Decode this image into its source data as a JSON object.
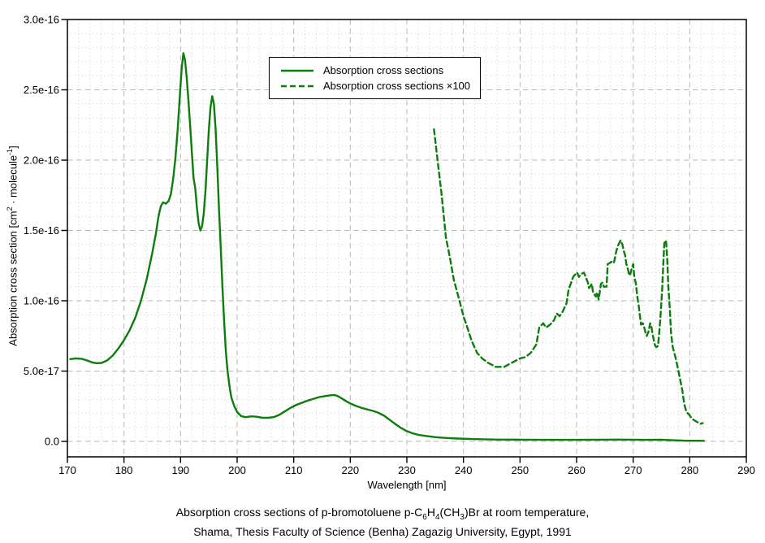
{
  "colors": {
    "curve": "#0d7d0d",
    "grid_major": "#b9b9b9",
    "grid_minor": "#cdcdcd",
    "axis": "#000000",
    "background": "#ffffff"
  },
  "legend": {
    "items": [
      {
        "label": "Absorption cross sections"
      },
      {
        "label": "Absorption cross sections ×100"
      }
    ]
  },
  "caption": {
    "line1_parts": {
      "p1": "Absorption cross sections of p-bromotoluene p-C",
      "sub1": "6",
      "p2": "H",
      "sub2": "4",
      "p3": "(CH",
      "sub3": "3",
      "p4": ")Br at room temperature,"
    },
    "line2": "Shama, Thesis Faculty of Science (Benha) Zagazig University, Egypt, 1991"
  },
  "chart_data": {
    "type": "line",
    "title": "",
    "xlabel": "Wavelength [nm]",
    "ylabel": "Absorption cross section [cm2 · molecule-1]",
    "ylabel_parts": {
      "p1": "Absorption cross section [cm",
      "sup1": "2",
      "p2": " · molecule",
      "sup2": "-1",
      "p3": "]"
    },
    "xlim": [
      170,
      290
    ],
    "ylim_units_1e16": [
      0,
      3.0
    ],
    "x_ticks": [
      170,
      180,
      190,
      200,
      210,
      220,
      230,
      240,
      250,
      260,
      270,
      280,
      290
    ],
    "x_minor_step_nm": 2,
    "y_ticks": [
      [
        0,
        "0.0"
      ],
      [
        0.5,
        "5.0e-17"
      ],
      [
        1.0,
        "1.0e-16"
      ],
      [
        1.5,
        "1.5e-16"
      ],
      [
        2.0,
        "2.0e-16"
      ],
      [
        2.5,
        "2.5e-16"
      ],
      [
        3.0,
        "3.0e-16"
      ]
    ],
    "y_minor_step_1e16": 0.1,
    "grid": {
      "major": "dashed",
      "minor": "dotted"
    },
    "legend_position": "top-center-inside",
    "y_value_unit": "cm^2 molecule^-1, plotted in units of 1e-16",
    "series": [
      {
        "name": "Absorption cross sections",
        "line_style": "solid",
        "color": "#0d7d0d",
        "points_1e16": [
          [
            170.5,
            0.585
          ],
          [
            171.5,
            0.59
          ],
          [
            172.5,
            0.587
          ],
          [
            173.5,
            0.575
          ],
          [
            174.5,
            0.56
          ],
          [
            175.2,
            0.556
          ],
          [
            176,
            0.558
          ],
          [
            177,
            0.575
          ],
          [
            178,
            0.61
          ],
          [
            179,
            0.66
          ],
          [
            180,
            0.72
          ],
          [
            181,
            0.79
          ],
          [
            182,
            0.88
          ],
          [
            183,
            1.0
          ],
          [
            184,
            1.15
          ],
          [
            185,
            1.34
          ],
          [
            185.6,
            1.47
          ],
          [
            186.1,
            1.6
          ],
          [
            186.5,
            1.67
          ],
          [
            186.9,
            1.7
          ],
          [
            187.4,
            1.69
          ],
          [
            187.9,
            1.71
          ],
          [
            188.3,
            1.76
          ],
          [
            188.7,
            1.87
          ],
          [
            189.1,
            2.02
          ],
          [
            189.5,
            2.22
          ],
          [
            189.9,
            2.47
          ],
          [
            190.2,
            2.65
          ],
          [
            190.5,
            2.76
          ],
          [
            190.8,
            2.71
          ],
          [
            191.1,
            2.58
          ],
          [
            191.4,
            2.42
          ],
          [
            191.7,
            2.24
          ],
          [
            192,
            2.05
          ],
          [
            192.3,
            1.87
          ],
          [
            192.6,
            1.8
          ],
          [
            192.9,
            1.66
          ],
          [
            193.2,
            1.55
          ],
          [
            193.5,
            1.5
          ],
          [
            193.8,
            1.53
          ],
          [
            194.1,
            1.62
          ],
          [
            194.4,
            1.78
          ],
          [
            194.7,
            2.0
          ],
          [
            195,
            2.22
          ],
          [
            195.3,
            2.38
          ],
          [
            195.6,
            2.455
          ],
          [
            195.9,
            2.4
          ],
          [
            196.2,
            2.22
          ],
          [
            196.5,
            1.95
          ],
          [
            196.8,
            1.65
          ],
          [
            197.1,
            1.38
          ],
          [
            197.4,
            1.1
          ],
          [
            197.7,
            0.85
          ],
          [
            198,
            0.64
          ],
          [
            198.3,
            0.5
          ],
          [
            198.7,
            0.38
          ],
          [
            199,
            0.31
          ],
          [
            199.5,
            0.25
          ],
          [
            200,
            0.21
          ],
          [
            200.7,
            0.18
          ],
          [
            201.5,
            0.172
          ],
          [
            202.5,
            0.178
          ],
          [
            203.5,
            0.175
          ],
          [
            204.5,
            0.168
          ],
          [
            205.5,
            0.168
          ],
          [
            206.5,
            0.173
          ],
          [
            207.5,
            0.19
          ],
          [
            208.5,
            0.215
          ],
          [
            209.5,
            0.24
          ],
          [
            210.5,
            0.26
          ],
          [
            211.5,
            0.275
          ],
          [
            212.5,
            0.29
          ],
          [
            213.5,
            0.303
          ],
          [
            214.5,
            0.315
          ],
          [
            215.5,
            0.322
          ],
          [
            216.5,
            0.328
          ],
          [
            217.2,
            0.33
          ],
          [
            217.8,
            0.322
          ],
          [
            218.5,
            0.305
          ],
          [
            219.3,
            0.285
          ],
          [
            220,
            0.27
          ],
          [
            221,
            0.252
          ],
          [
            222,
            0.238
          ],
          [
            223,
            0.228
          ],
          [
            224,
            0.217
          ],
          [
            225,
            0.203
          ],
          [
            226,
            0.182
          ],
          [
            227,
            0.152
          ],
          [
            228,
            0.122
          ],
          [
            229,
            0.095
          ],
          [
            230,
            0.073
          ],
          [
            231,
            0.058
          ],
          [
            232,
            0.047
          ],
          [
            233.5,
            0.038
          ],
          [
            235,
            0.03
          ],
          [
            237,
            0.024
          ],
          [
            239,
            0.02
          ],
          [
            242,
            0.016
          ],
          [
            246,
            0.013
          ],
          [
            250,
            0.012
          ],
          [
            255,
            0.011
          ],
          [
            260,
            0.011
          ],
          [
            264,
            0.012
          ],
          [
            268,
            0.013
          ],
          [
            272,
            0.011
          ],
          [
            275,
            0.012
          ],
          [
            277,
            0.008
          ],
          [
            279,
            0.005
          ],
          [
            282.5,
            0.004
          ]
        ]
      },
      {
        "name": "Absorption cross sections ×100",
        "line_style": "dashed",
        "color": "#0d7d0d",
        "points_1e16": [
          [
            234.8,
            2.22
          ],
          [
            235.2,
            2.08
          ],
          [
            235.6,
            1.94
          ],
          [
            236.1,
            1.77
          ],
          [
            236.9,
            1.45
          ],
          [
            237.6,
            1.31
          ],
          [
            238.3,
            1.15
          ],
          [
            239.3,
            1.0
          ],
          [
            240,
            0.89
          ],
          [
            240.7,
            0.81
          ],
          [
            241.4,
            0.72
          ],
          [
            242.4,
            0.63
          ],
          [
            243.3,
            0.59
          ],
          [
            244.3,
            0.56
          ],
          [
            245.7,
            0.53
          ],
          [
            247.2,
            0.53
          ],
          [
            248.6,
            0.56
          ],
          [
            250,
            0.59
          ],
          [
            251,
            0.6
          ],
          [
            251.9,
            0.63
          ],
          [
            252.9,
            0.69
          ],
          [
            253.4,
            0.81
          ],
          [
            254.1,
            0.84
          ],
          [
            254.6,
            0.81
          ],
          [
            255.3,
            0.83
          ],
          [
            256,
            0.86
          ],
          [
            256.5,
            0.91
          ],
          [
            257,
            0.89
          ],
          [
            257.5,
            0.92
          ],
          [
            258.2,
            0.98
          ],
          [
            258.6,
            1.08
          ],
          [
            259.4,
            1.17
          ],
          [
            259.8,
            1.19
          ],
          [
            260.1,
            1.2
          ],
          [
            260.4,
            1.17
          ],
          [
            260.8,
            1.19
          ],
          [
            261.3,
            1.2
          ],
          [
            261.6,
            1.17
          ],
          [
            262,
            1.13
          ],
          [
            262.2,
            1.09
          ],
          [
            262.7,
            1.12
          ],
          [
            262.9,
            1.06
          ],
          [
            263.4,
            1.03
          ],
          [
            263.6,
            1.06
          ],
          [
            263.9,
            1.01
          ],
          [
            264.3,
            1.12
          ],
          [
            264.6,
            1.13
          ],
          [
            264.8,
            1.1
          ],
          [
            265.3,
            1.1
          ],
          [
            265.5,
            1.26
          ],
          [
            265.9,
            1.27
          ],
          [
            266.3,
            1.28
          ],
          [
            266.6,
            1.27
          ],
          [
            267,
            1.35
          ],
          [
            267.4,
            1.4
          ],
          [
            267.8,
            1.43
          ],
          [
            268.1,
            1.4
          ],
          [
            268.3,
            1.36
          ],
          [
            268.6,
            1.32
          ],
          [
            268.8,
            1.26
          ],
          [
            269.1,
            1.22
          ],
          [
            269.3,
            1.18
          ],
          [
            269.5,
            1.19
          ],
          [
            269.8,
            1.24
          ],
          [
            270,
            1.26
          ],
          [
            270.2,
            1.17
          ],
          [
            270.5,
            1.12
          ],
          [
            270.7,
            1.04
          ],
          [
            271,
            0.96
          ],
          [
            271.2,
            0.89
          ],
          [
            271.4,
            0.83
          ],
          [
            271.7,
            0.84
          ],
          [
            271.9,
            0.82
          ],
          [
            272.2,
            0.77
          ],
          [
            272.4,
            0.75
          ],
          [
            272.7,
            0.78
          ],
          [
            273,
            0.84
          ],
          [
            273.2,
            0.82
          ],
          [
            273.4,
            0.77
          ],
          [
            273.7,
            0.71
          ],
          [
            273.9,
            0.68
          ],
          [
            274.1,
            0.67
          ],
          [
            274.4,
            0.68
          ],
          [
            274.6,
            0.77
          ],
          [
            274.8,
            0.87
          ],
          [
            275.1,
            1.06
          ],
          [
            275.3,
            1.24
          ],
          [
            275.5,
            1.41
          ],
          [
            275.8,
            1.43
          ],
          [
            276,
            1.31
          ],
          [
            276.2,
            1.11
          ],
          [
            276.5,
            0.92
          ],
          [
            276.7,
            0.77
          ],
          [
            277,
            0.67
          ],
          [
            277.5,
            0.595
          ],
          [
            277.9,
            0.52
          ],
          [
            278.3,
            0.44
          ],
          [
            278.7,
            0.36
          ],
          [
            279,
            0.27
          ],
          [
            279.4,
            0.21
          ],
          [
            279.9,
            0.19
          ],
          [
            280.4,
            0.16
          ],
          [
            281,
            0.145
          ],
          [
            281.9,
            0.125
          ],
          [
            282.3,
            0.13
          ]
        ]
      }
    ]
  }
}
